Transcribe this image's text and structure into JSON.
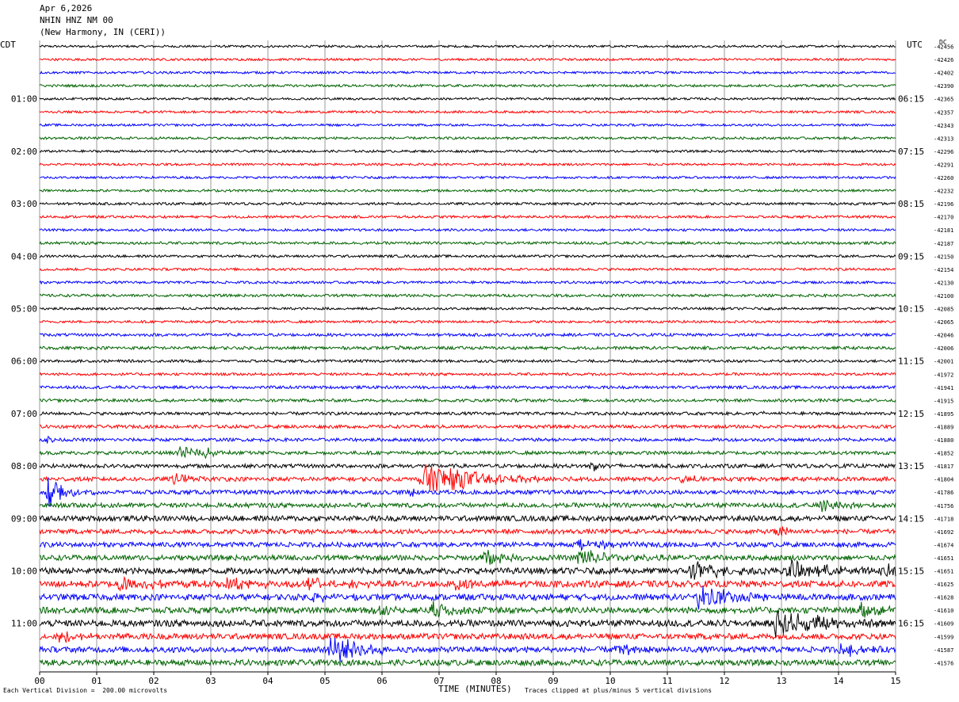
{
  "header": {
    "date": "Apr 6,2026",
    "station": "NHIN HNZ NM 00",
    "location": "(New Harmony, IN (CERI))"
  },
  "left_tz": "CDT",
  "right_tz": "UTC",
  "dc_label": "DC",
  "footer": {
    "scale_note": "Each Vertical Division =  200.00 microvolts",
    "clip_note": "Traces clipped at plus/minus 5 vertical divisions"
  },
  "colors": {
    "traces": [
      "#000000",
      "#ff0000",
      "#0000ff",
      "#006400"
    ],
    "grid": "#999999"
  },
  "chart_data": {
    "type": "line",
    "title": "Apr 6,2026 NHIN HNZ NM 00 (New Harmony, IN (CERI))",
    "xlabel": "TIME (MINUTES)",
    "xlim": [
      0,
      15
    ],
    "x_ticks": [
      "00",
      "01",
      "02",
      "03",
      "04",
      "05",
      "06",
      "07",
      "08",
      "09",
      "10",
      "11",
      "12",
      "13",
      "14",
      "15"
    ],
    "trace_count": 48,
    "minutes_per_trace": 15,
    "left_hour_labels": [
      "01:00",
      "02:00",
      "03:00",
      "04:00",
      "05:00",
      "06:00",
      "07:00",
      "08:00",
      "09:00",
      "10:00",
      "11:00"
    ],
    "right_hour_labels": [
      "06:15",
      "07:15",
      "08:15",
      "09:15",
      "10:15",
      "11:15",
      "12:15",
      "13:15",
      "14:15",
      "15:15",
      "16:15"
    ],
    "hour_label_start_trace": 4,
    "hour_label_every": 4,
    "dc_offsets": [
      -42456,
      -42426,
      -42402,
      -42390,
      -42365,
      -42357,
      -42343,
      -42313,
      -42296,
      -42291,
      -42260,
      -42232,
      -42196,
      -42170,
      -42181,
      -42187,
      -42150,
      -42154,
      -42130,
      -42100,
      -42085,
      -42065,
      -42046,
      -42006,
      -42001,
      -41972,
      -41941,
      -41915,
      -41895,
      -41889,
      -41880,
      -41852,
      -41817,
      -41804,
      -41786,
      -41756,
      -41718,
      -41692,
      -41674,
      -41651,
      -41651,
      -41625,
      -41628,
      -41610,
      -41609,
      -41599,
      -41587,
      -41576
    ],
    "trace_noise": [
      1.2,
      1.2,
      1.2,
      1.3,
      1.2,
      1.2,
      1.2,
      1.3,
      1.2,
      1.2,
      1.2,
      1.3,
      1.3,
      1.3,
      1.3,
      1.4,
      1.3,
      1.3,
      1.3,
      1.4,
      1.3,
      1.3,
      1.5,
      1.6,
      1.4,
      1.4,
      1.5,
      1.6,
      1.6,
      1.7,
      1.7,
      1.8,
      2.0,
      2.2,
      2.2,
      2.4,
      2.8,
      2.4,
      2.5,
      2.7,
      3.2,
      3.4,
      3.2,
      3.2,
      3.4,
      3.0,
      3.0,
      3.0
    ],
    "events": [
      {
        "trace": 22,
        "minute": 6.45,
        "amp": 3,
        "dur": 0.1
      },
      {
        "trace": 23,
        "minute": 6.3,
        "amp": 3,
        "dur": 0.1
      },
      {
        "trace": 28,
        "minute": 12.65,
        "amp": 3,
        "dur": 0.1
      },
      {
        "trace": 30,
        "minute": 0.15,
        "amp": 8,
        "dur": 0.05
      },
      {
        "trace": 31,
        "minute": 2.45,
        "amp": 10,
        "dur": 0.3
      },
      {
        "trace": 31,
        "minute": 2.9,
        "amp": 6,
        "dur": 0.2
      },
      {
        "trace": 32,
        "minute": 9.65,
        "amp": 6,
        "dur": 0.3
      },
      {
        "trace": 33,
        "minute": 2.35,
        "amp": 8,
        "dur": 0.3
      },
      {
        "trace": 33,
        "minute": 6.7,
        "amp": 22,
        "dur": 0.9
      },
      {
        "trace": 33,
        "minute": 11.25,
        "amp": 5,
        "dur": 0.3
      },
      {
        "trace": 34,
        "minute": 0.15,
        "amp": 22,
        "dur": 0.3
      },
      {
        "trace": 34,
        "minute": 6.5,
        "amp": 5,
        "dur": 0.3
      },
      {
        "trace": 35,
        "minute": 13.7,
        "amp": 9,
        "dur": 0.4
      },
      {
        "trace": 37,
        "minute": 12.9,
        "amp": 7,
        "dur": 0.3
      },
      {
        "trace": 38,
        "minute": 9.45,
        "amp": 10,
        "dur": 0.4
      },
      {
        "trace": 39,
        "minute": 9.45,
        "amp": 12,
        "dur": 0.6
      },
      {
        "trace": 39,
        "minute": 7.8,
        "amp": 10,
        "dur": 0.3
      },
      {
        "trace": 40,
        "minute": 11.4,
        "amp": 12,
        "dur": 0.6
      },
      {
        "trace": 40,
        "minute": 13.1,
        "amp": 12,
        "dur": 0.8
      },
      {
        "trace": 40,
        "minute": 14.8,
        "amp": 10,
        "dur": 0.4
      },
      {
        "trace": 41,
        "minute": 1.4,
        "amp": 8,
        "dur": 0.6
      },
      {
        "trace": 41,
        "minute": 3.3,
        "amp": 8,
        "dur": 0.6
      },
      {
        "trace": 41,
        "minute": 4.7,
        "amp": 8,
        "dur": 0.6
      },
      {
        "trace": 41,
        "minute": 7.3,
        "amp": 8,
        "dur": 0.6
      },
      {
        "trace": 42,
        "minute": 11.55,
        "amp": 16,
        "dur": 0.6
      },
      {
        "trace": 42,
        "minute": 4.8,
        "amp": 6,
        "dur": 0.3
      },
      {
        "trace": 43,
        "minute": 6.85,
        "amp": 10,
        "dur": 0.4
      },
      {
        "trace": 43,
        "minute": 5.8,
        "amp": 6,
        "dur": 0.4
      },
      {
        "trace": 43,
        "minute": 14.4,
        "amp": 10,
        "dur": 0.3
      },
      {
        "trace": 44,
        "minute": 12.9,
        "amp": 18,
        "dur": 0.8
      },
      {
        "trace": 45,
        "minute": 0.35,
        "amp": 8,
        "dur": 0.4
      },
      {
        "trace": 46,
        "minute": 5.1,
        "amp": 20,
        "dur": 0.5
      },
      {
        "trace": 46,
        "minute": 10.1,
        "amp": 7,
        "dur": 0.4
      },
      {
        "trace": 46,
        "minute": 14.05,
        "amp": 10,
        "dur": 0.3
      }
    ]
  }
}
